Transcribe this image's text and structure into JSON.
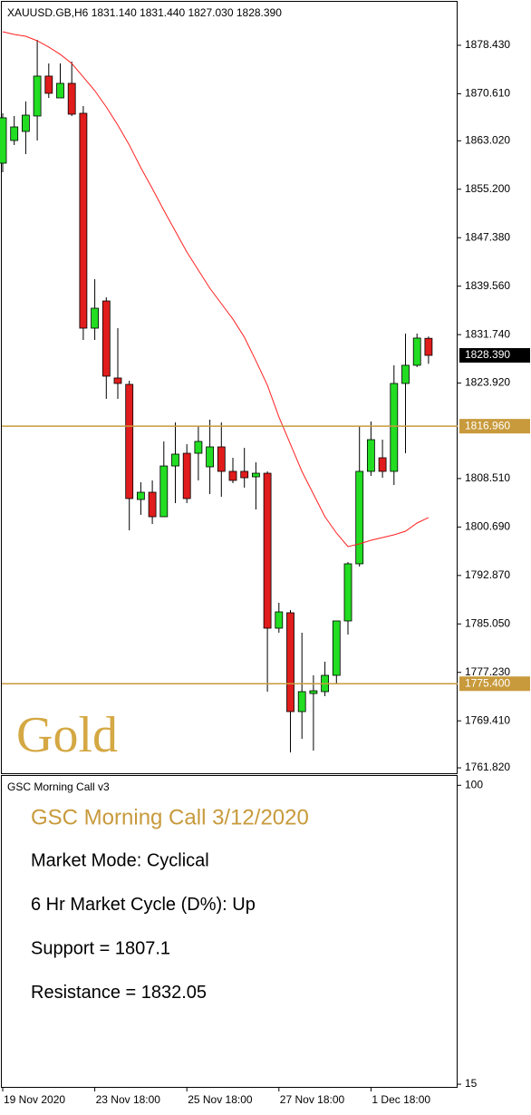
{
  "chart_data": {
    "type": "candlestick",
    "header": "XAUUSD.GB,H6  1831.140 1831.440 1827.030 1828.390",
    "watermark": "Gold",
    "categories": [
      "19 Nov 2020",
      null,
      null,
      null,
      null,
      null,
      null,
      null,
      "23 Nov 18:00",
      null,
      null,
      null,
      null,
      null,
      null,
      null,
      "25 Nov 18:00",
      null,
      null,
      null,
      null,
      null,
      null,
      null,
      "27 Nov 18:00",
      null,
      null,
      null,
      null,
      null,
      null,
      null,
      "1 Dec 18:00",
      null,
      null,
      null,
      null,
      null
    ],
    "open": [
      1859.41,
      1863.07,
      1864.53,
      1867.02,
      1873.46,
      1869.94,
      1872.29,
      1867.46,
      1832.78,
      1837.17,
      1824.74,
      1823.71,
      1805.13,
      1806.3,
      1802.35,
      1810.54,
      1812.59,
      1812.59,
      1810.4,
      1813.62,
      1809.67,
      1809.67,
      1808.79,
      1809.37,
      1784.36,
      1786.85,
      1770.9,
      1773.82,
      1774.12,
      1776.75,
      1785.53,
      1794.75,
      1809.67,
      1811.86,
      1809.67,
      1823.86,
      1826.79,
      1831.14
    ],
    "high": [
      1867.46,
      1867.02,
      1869.36,
      1879.31,
      1875.5,
      1875.5,
      1875.8,
      1868.63,
      1840.68,
      1837.76,
      1832.78,
      1824.3,
      1807.91,
      1808.21,
      1814.5,
      1817.57,
      1814.06,
      1816.98,
      1818.01,
      1817.57,
      1811.86,
      1813.47,
      1811.13,
      1809.67,
      1788.46,
      1787.29,
      1783.63,
      1776.75,
      1778.95,
      1785.53,
      1795.04,
      1816.98,
      1817.72,
      1814.79,
      1826.79,
      1831.91,
      1831.91,
      1831.44
    ],
    "low": [
      1857.95,
      1862.34,
      1860.87,
      1863.07,
      1869.94,
      1869.94,
      1867.02,
      1830.88,
      1830.88,
      1821.37,
      1821.37,
      1800.16,
      1802.65,
      1801.18,
      1802.35,
      1804.55,
      1804.55,
      1808.21,
      1806.01,
      1805.57,
      1807.77,
      1807.04,
      1803.52,
      1774.12,
      1783.63,
      1764.32,
      1766.51,
      1764.61,
      1773.39,
      1775.29,
      1783.33,
      1794.31,
      1808.94,
      1808.64,
      1807.47,
      1812.59,
      1826.5,
      1827.03
    ],
    "close": [
      1866.73,
      1865.26,
      1867.16,
      1873.46,
      1870.68,
      1872.29,
      1867.31,
      1832.78,
      1836.0,
      1825.03,
      1823.86,
      1805.28,
      1806.3,
      1802.35,
      1810.54,
      1812.45,
      1805.28,
      1814.5,
      1813.62,
      1809.67,
      1808.21,
      1808.64,
      1809.37,
      1784.36,
      1786.99,
      1770.9,
      1774.12,
      1774.26,
      1776.75,
      1785.53,
      1794.75,
      1809.67,
      1814.79,
      1809.67,
      1823.86,
      1826.79,
      1831.18,
      1828.39
    ],
    "up_color": "#22dd22",
    "down_color": "#e01c1c",
    "ma": [
      1880.62,
      1880.19,
      1879.89,
      1879.16,
      1878.14,
      1876.97,
      1875.5,
      1873.31,
      1871.11,
      1868.48,
      1865.56,
      1862.34,
      1858.68,
      1855.31,
      1851.8,
      1848.44,
      1845.07,
      1842.15,
      1839.22,
      1836.73,
      1834.25,
      1831.32,
      1827.52,
      1823.57,
      1818.45,
      1814.06,
      1809.67,
      1806.01,
      1802.35,
      1799.72,
      1797.53,
      1797.96,
      1798.55,
      1798.99,
      1799.43,
      1800.01,
      1801.33,
      1802.21
    ],
    "ma_color": "#ff2020",
    "hlines": [
      {
        "value": 1816.96,
        "label": "1816.960",
        "color": "#c89a3c"
      },
      {
        "value": 1775.4,
        "label": "1775.400",
        "color": "#c89a3c"
      }
    ],
    "last_price": {
      "value": 1828.39,
      "label": "1828.390"
    },
    "ylim": [
      1760.95,
      1885.01
    ],
    "yticks": [
      {
        "value": 1878.43,
        "label": "1878.430"
      },
      {
        "value": 1870.61,
        "label": "1870.610"
      },
      {
        "value": 1863.02,
        "label": "1863.020"
      },
      {
        "value": 1855.2,
        "label": "1855.200"
      },
      {
        "value": 1847.38,
        "label": "1847.380"
      },
      {
        "value": 1839.56,
        "label": "1839.560"
      },
      {
        "value": 1831.74,
        "label": "1831.740"
      },
      {
        "value": 1823.92,
        "label": "1823.920"
      },
      {
        "value": 1808.51,
        "label": "1808.510"
      },
      {
        "value": 1800.69,
        "label": "1800.690"
      },
      {
        "value": 1792.87,
        "label": "1792.870"
      },
      {
        "value": 1785.05,
        "label": "1785.050"
      },
      {
        "value": 1777.23,
        "label": "1777.230"
      },
      {
        "value": 1769.41,
        "label": "1769.410"
      },
      {
        "value": 1761.82,
        "label": "1761.820"
      }
    ],
    "indicator": {
      "title": "GSC Morning Call v3",
      "ylim": [
        14.5,
        102.4
      ],
      "yticks": [
        100,
        15
      ],
      "heading": "GSC Morning Call 3/12/2020",
      "lines": [
        "Market Mode: Cyclical",
        "6 Hr Market Cycle (D%): Up",
        "Support = 1807.1",
        "Resistance = 1832.05"
      ]
    }
  }
}
